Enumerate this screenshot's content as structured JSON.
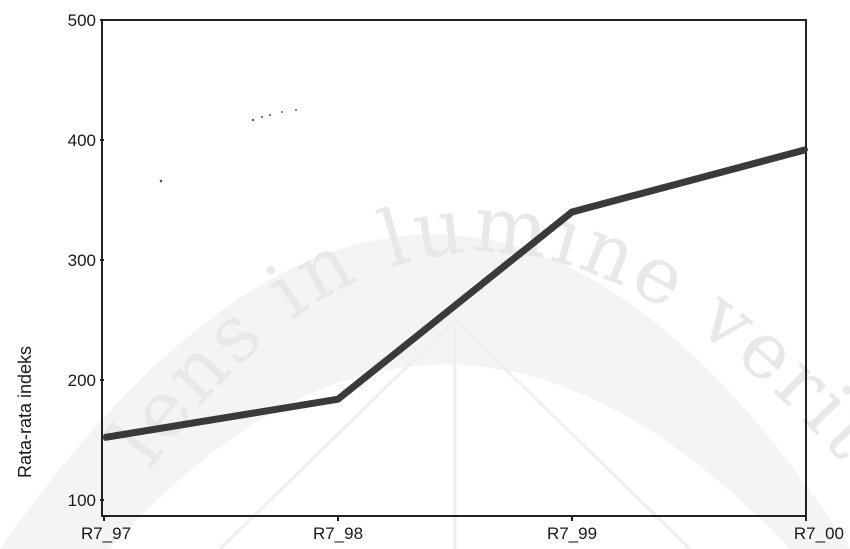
{
  "watermark": {
    "text": "lens in lumine veritas"
  },
  "chart_data": {
    "type": "line",
    "categories": [
      "R7_97",
      "R7_98",
      "R7_99",
      "R7_00"
    ],
    "series": [
      {
        "values": [
          152,
          184,
          340,
          392
        ],
        "color": "#3a3a3a"
      }
    ],
    "title": "",
    "xlabel": "",
    "ylabel": "Rata-rata indeks",
    "ylim": [
      100,
      500
    ],
    "yticks": [
      100,
      200,
      300,
      400,
      500
    ],
    "grid": false
  }
}
